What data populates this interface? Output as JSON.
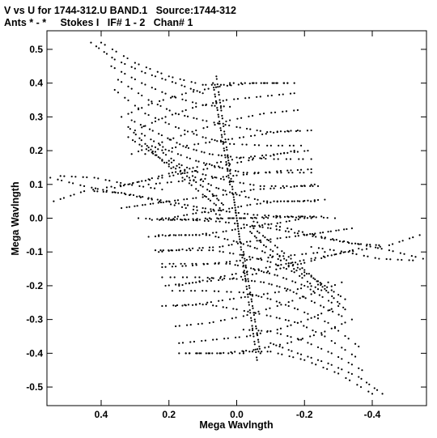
{
  "header": {
    "line1": "V vs U for 1744-312.U BAND.1   Source:1744-312",
    "line2": "Ants * - *     Stokes I   IF# 1 - 2   Chan# 1"
  },
  "chart_data": {
    "type": "scatter",
    "title": "V vs U for 1744-312.U BAND.1   Source:1744-312",
    "subtitle": "Ants * - *     Stokes I   IF# 1 - 2   Chan# 1",
    "xlabel": "Mega Wavlngth",
    "ylabel": "Mega Wavlngth",
    "xlim": [
      0.56,
      -0.56
    ],
    "ylim": [
      -0.555,
      0.555
    ],
    "x_ticks": [
      0.4,
      0.2,
      0.0,
      -0.2,
      -0.4
    ],
    "x_tick_labels": [
      "0.4",
      "0.2",
      "0.0",
      "-0.2",
      "-0.4"
    ],
    "y_ticks": [
      0.5,
      0.4,
      0.3,
      0.2,
      0.1,
      0.0,
      -0.1,
      -0.2,
      -0.3,
      -0.4,
      -0.5
    ],
    "y_tick_labels": [
      "0.5",
      "0.4",
      "0.3",
      "0.2",
      "0.1",
      "0.0",
      "-0.1",
      "-0.2",
      "-0.3",
      "-0.4",
      "-0.5"
    ],
    "series_tracks": [
      {
        "u": [
          0.4,
          0.3,
          0.2,
          0.1,
          0.02
        ],
        "v": [
          0.52,
          0.46,
          0.42,
          0.395,
          0.395
        ]
      },
      {
        "u": [
          0.02,
          -0.08,
          -0.17
        ],
        "v": [
          0.4,
          0.4,
          0.4
        ]
      },
      {
        "u": [
          0.37,
          0.28,
          0.19,
          0.1,
          0.02
        ],
        "v": [
          0.45,
          0.4,
          0.36,
          0.335,
          0.33
        ]
      },
      {
        "u": [
          0.35,
          0.26,
          0.18,
          0.1,
          0.0,
          -0.09,
          -0.18
        ],
        "v": [
          0.41,
          0.35,
          0.31,
          0.29,
          0.27,
          0.255,
          0.26
        ]
      },
      {
        "u": [
          0.36,
          0.27,
          0.18,
          0.1,
          0.02,
          -0.09,
          -0.19
        ],
        "v": [
          0.38,
          0.31,
          0.27,
          0.24,
          0.22,
          0.215,
          0.215
        ]
      },
      {
        "u": [
          0.31,
          0.23,
          0.15,
          0.08,
          0.0,
          -0.11,
          -0.22
        ],
        "v": [
          0.29,
          0.25,
          0.21,
          0.19,
          0.18,
          0.175,
          0.175
        ]
      },
      {
        "u": [
          0.28,
          0.2,
          0.12,
          0.05,
          -0.02,
          -0.12,
          -0.22
        ],
        "v": [
          0.25,
          0.2,
          0.17,
          0.15,
          0.135,
          0.135,
          0.135
        ]
      },
      {
        "u": [
          0.24,
          0.17,
          0.1,
          0.02,
          -0.07,
          -0.17,
          -0.24
        ],
        "v": [
          0.21,
          0.16,
          0.13,
          0.11,
          0.095,
          0.095,
          0.095
        ]
      },
      {
        "u": [
          0.52,
          0.42,
          0.32,
          0.22
        ],
        "v": [
          0.125,
          0.12,
          0.1,
          0.085
        ]
      },
      {
        "u": [
          0.2,
          0.13,
          0.06,
          0.0,
          -0.08,
          -0.17,
          -0.26
        ],
        "v": [
          0.17,
          0.125,
          0.09,
          0.07,
          0.05,
          0.05,
          0.055
        ]
      },
      {
        "u": [
          0.42,
          0.34,
          0.26,
          0.18,
          0.1,
          0.03,
          -0.05,
          -0.15,
          -0.25
        ],
        "v": [
          0.08,
          0.075,
          0.06,
          0.045,
          0.03,
          0.02,
          0.01,
          0.005,
          0.005
        ]
      },
      {
        "u": [
          0.22,
          0.12,
          0.02,
          -0.08,
          -0.19,
          -0.29
        ],
        "v": [
          -0.0,
          -0.005,
          0.0,
          0.0,
          0.005,
          0.0
        ]
      },
      {
        "u": [
          0.23,
          0.13,
          0.04,
          -0.04,
          -0.12,
          -0.2
        ],
        "v": [
          -0.05,
          -0.05,
          -0.04,
          -0.025,
          -0.015,
          -0.0
        ]
      },
      {
        "u": [
          -0.05,
          -0.15,
          -0.25,
          -0.35,
          -0.45,
          -0.55
        ],
        "v": [
          -0.01,
          -0.03,
          -0.055,
          -0.075,
          -0.095,
          -0.12
        ]
      },
      {
        "u": [
          0.23,
          0.14,
          0.05,
          -0.03,
          -0.12,
          -0.2,
          -0.27,
          -0.34
        ],
        "v": [
          -0.1,
          -0.09,
          -0.085,
          -0.07,
          -0.06,
          -0.05,
          -0.04,
          -0.03
        ]
      },
      {
        "u": [
          0.22,
          0.13,
          0.03,
          -0.06,
          -0.16,
          -0.26
        ],
        "v": [
          -0.145,
          -0.14,
          -0.13,
          -0.12,
          -0.11,
          -0.1
        ]
      },
      {
        "u": [
          0.21,
          0.12,
          0.02,
          -0.08,
          -0.19,
          -0.28,
          -0.36
        ],
        "v": [
          -0.2,
          -0.19,
          -0.18,
          -0.16,
          -0.135,
          -0.11,
          -0.09
        ]
      },
      {
        "u": [
          0.17,
          0.08,
          -0.02,
          -0.12,
          -0.22,
          -0.33,
          -0.45,
          -0.54
        ],
        "v": [
          -0.2,
          -0.18,
          -0.16,
          -0.14,
          -0.12,
          -0.1,
          -0.08,
          -0.05
        ]
      },
      {
        "u": [
          0.22,
          0.12,
          0.02,
          -0.08,
          -0.18,
          -0.27
        ],
        "v": [
          -0.26,
          -0.255,
          -0.24,
          -0.225,
          -0.21,
          -0.19
        ]
      },
      {
        "u": [
          0.18,
          0.08,
          -0.02,
          -0.12,
          -0.22,
          -0.31
        ],
        "v": [
          -0.32,
          -0.31,
          -0.29,
          -0.26,
          -0.225,
          -0.19
        ]
      },
      {
        "u": [
          0.17,
          0.07,
          -0.03,
          -0.12,
          -0.21,
          -0.3
        ],
        "v": [
          -0.37,
          -0.36,
          -0.35,
          -0.33,
          -0.3,
          -0.26
        ]
      },
      {
        "u": [
          0.15,
          0.05,
          -0.05,
          -0.15,
          -0.25,
          -0.34
        ],
        "v": [
          -0.4,
          -0.4,
          -0.39,
          -0.37,
          -0.34,
          -0.3
        ]
      },
      {
        "u": [
          -0.1,
          -0.18,
          -0.27,
          -0.36,
          -0.43
        ],
        "v": [
          -0.37,
          -0.4,
          -0.43,
          -0.47,
          -0.52
        ]
      },
      {
        "u": [
          -0.06,
          -0.05,
          -0.04,
          -0.03,
          -0.02,
          -0.01,
          0.0,
          0.01
        ],
        "v": [
          -0.42,
          -0.35,
          -0.28,
          -0.21,
          -0.14,
          -0.07,
          0.0,
          0.07
        ]
      },
      {
        "u": [
          0.02,
          0.03,
          0.04,
          0.05,
          0.06,
          0.07
        ],
        "v": [
          0.1,
          0.16,
          0.22,
          0.28,
          0.34,
          0.4
        ]
      },
      {
        "u": [
          0.32,
          0.27,
          0.22,
          0.16,
          0.1,
          0.05
        ],
        "v": [
          0.27,
          0.22,
          0.17,
          0.12,
          0.07,
          0.03
        ]
      },
      {
        "u": [
          -0.04,
          -0.08,
          -0.14,
          -0.2,
          -0.26,
          -0.32
        ],
        "v": [
          -0.04,
          -0.08,
          -0.12,
          -0.16,
          -0.2,
          -0.24
        ]
      }
    ],
    "marker": "dot",
    "grid": false
  },
  "colors": {
    "background": "#ffffff",
    "ink": "#000000"
  }
}
